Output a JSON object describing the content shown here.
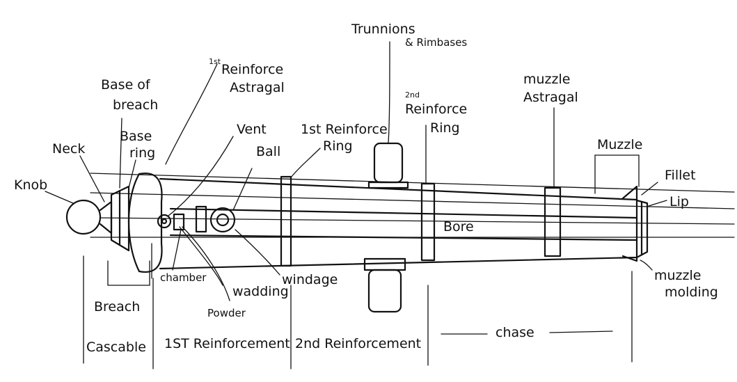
{
  "labels": {
    "knob": "Knob",
    "neck": "Neck",
    "base_of_breach": "Base of breach",
    "base_ring": "Base ring",
    "reinforce_astragal_1_sup": "1st",
    "reinforce_astragal_1_a": "Reinforce",
    "reinforce_astragal_1_b": "Astragal",
    "vent": "Vent",
    "ball": "Ball",
    "reinforce_ring_1": "1st Reinforce",
    "reinforce_ring_1_b": "Ring",
    "trunnions": "Trunnions",
    "rimbases": "& Rimbases",
    "reinforce_ring_2_sup": "2nd",
    "reinforce_ring_2_a": "Reinforce",
    "reinforce_ring_2_b": "Ring",
    "muzzle_astragal_a": "muzzle",
    "muzzle_astragal_b": "Astragal",
    "muzzle": "Muzzle",
    "fillet": "Fillet",
    "lip": "Lip",
    "bore": "Bore",
    "muzzle_molding_a": "muzzle",
    "muzzle_molding_b": "molding",
    "chamber": "chamber",
    "wadding": "wadding",
    "powder": "Powder",
    "windage": "windage",
    "breach": "Breach",
    "cascable": "Cascable",
    "reinforcement_1": "1ST Reinforcement",
    "reinforcement_2": "2nd Reinforcement",
    "chase": "chase"
  }
}
